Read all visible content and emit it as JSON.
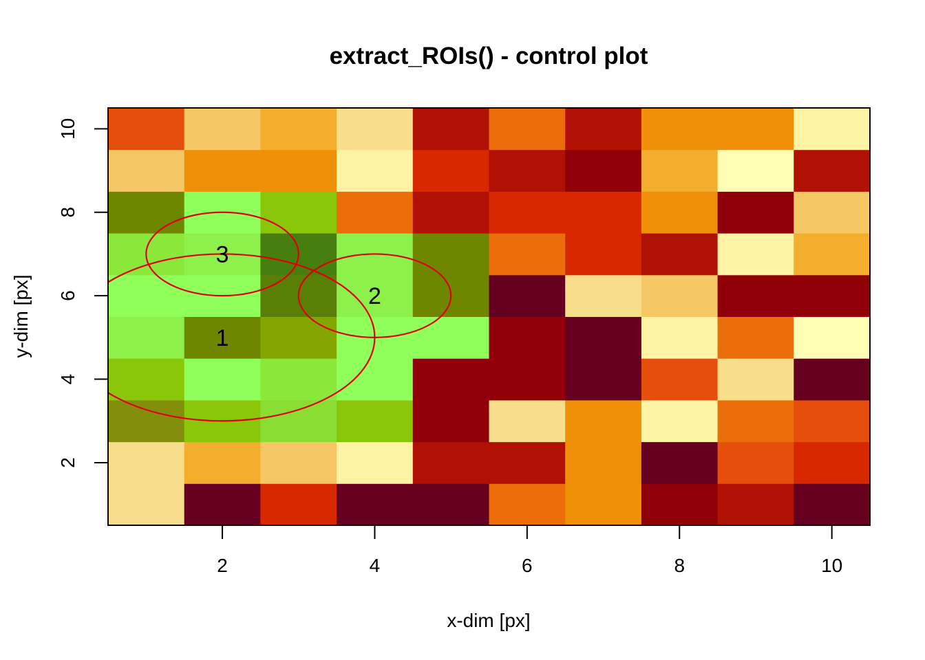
{
  "chart_data": {
    "type": "heatmap",
    "title": "extract_ROIs() - control plot",
    "xlabel": "x-dim [px]",
    "ylabel": "y-dim [px]",
    "xlim": [
      0.5,
      10.5
    ],
    "ylim": [
      0.5,
      10.5
    ],
    "x_ticks": [
      "2",
      "4",
      "6",
      "8",
      "10"
    ],
    "y_ticks": [
      "2",
      "4",
      "6",
      "8",
      "10"
    ],
    "grid": false,
    "colors": [
      [
        "#F8DE8A",
        "#660020",
        "#D72800",
        "#660020",
        "#660020",
        "#EC6E0A",
        "#F09008",
        "#900008",
        "#B11005",
        "#660020"
      ],
      [
        "#F8DE8A",
        "#F3AE2D",
        "#F6C765",
        "#FEF2A4",
        "#B11005",
        "#B11005",
        "#F09008",
        "#660020",
        "#E64E0B",
        "#D72800"
      ],
      [
        "#838F0A",
        "#8AC60A",
        "#8BDD33",
        "#8AC60A",
        "#900008",
        "#F8DE8A",
        "#F09008",
        "#FEF2A4",
        "#EC6E0A",
        "#E64E0B"
      ],
      [
        "#8AC60A",
        "#90FF5A",
        "#8CE73B",
        "#90FF5A",
        "#900008",
        "#900008",
        "#660020",
        "#E64E0B",
        "#F8DE8A",
        "#660020"
      ],
      [
        "#8DF04B",
        "#6F8600",
        "#83A600",
        "#90FF5A",
        "#90FF5A",
        "#900008",
        "#660020",
        "#FEF2A4",
        "#EC6E0A",
        "#FFFEB4"
      ],
      [
        "#90FF5A",
        "#90FF5A",
        "#5A7F07",
        "#8DF04B",
        "#6F8600",
        "#660020",
        "#F8DE8A",
        "#F6C765",
        "#900008",
        "#900008"
      ],
      [
        "#8CE73B",
        "#8DF04B",
        "#467E10",
        "#8DF04B",
        "#6F8600",
        "#EC6E0A",
        "#D72800",
        "#B11005",
        "#FEF2A4",
        "#F3AE2D"
      ],
      [
        "#6F8600",
        "#90FF5A",
        "#8AC60A",
        "#EC6E0A",
        "#B11005",
        "#D72800",
        "#D72800",
        "#F09008",
        "#900008",
        "#F6C765"
      ],
      [
        "#F6C765",
        "#F09008",
        "#F09008",
        "#FEF2A4",
        "#D72800",
        "#B11005",
        "#900008",
        "#F3AE2D",
        "#FFFEB4",
        "#B11005"
      ],
      [
        "#E64E0B",
        "#F6C765",
        "#F3AE2D",
        "#F8DE8A",
        "#B11005",
        "#EC6E0A",
        "#B11005",
        "#F09008",
        "#F09008",
        "#FEF2A4"
      ]
    ],
    "rois": [
      {
        "label": "1",
        "x": 2,
        "y": 5,
        "rx": 2,
        "ry": 2
      },
      {
        "label": "2",
        "x": 4,
        "y": 6,
        "rx": 1,
        "ry": 1
      },
      {
        "label": "3",
        "x": 2,
        "y": 7,
        "rx": 1,
        "ry": 1
      }
    ],
    "roi_color": "#E00000"
  }
}
